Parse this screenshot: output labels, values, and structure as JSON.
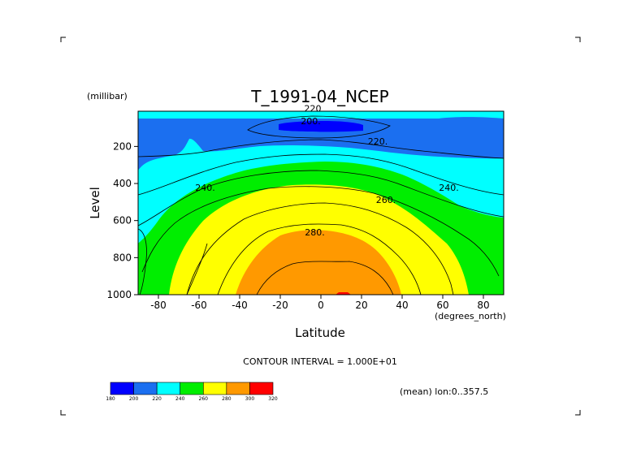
{
  "chart_data": {
    "type": "heatmap",
    "title": "T_1991-04_NCEP",
    "xlabel": "Latitude",
    "x_unit": "(degrees_north)",
    "ylabel": "Level",
    "y_unit": "(millibar)",
    "xlim": [
      -90,
      90
    ],
    "ylim": [
      1000,
      10
    ],
    "y_axis_reversed": true,
    "x_ticks": [
      -80,
      -60,
      -40,
      -20,
      0,
      20,
      40,
      60,
      80
    ],
    "y_ticks": [
      200,
      400,
      600,
      800,
      1000
    ],
    "contour_interval_text": "CONTOUR INTERVAL = 1.000E+01",
    "contour_labels": [
      {
        "text": "220",
        "x": -4,
        "y": 12
      },
      {
        "text": "200.",
        "x": -5,
        "y": 80
      },
      {
        "text": "220.",
        "x": 28,
        "y": 190
      },
      {
        "text": "240.",
        "x": -57,
        "y": 440
      },
      {
        "text": "260.",
        "x": 32,
        "y": 505
      },
      {
        "text": "240.",
        "x": 63,
        "y": 440
      },
      {
        "text": "280.",
        "x": -3,
        "y": 680
      }
    ],
    "colorbar": {
      "levels": [
        180,
        200,
        220,
        240,
        260,
        280,
        300,
        320
      ],
      "colors": [
        "#0000ff",
        "#1b6ff0",
        "#00ffff",
        "#00ee00",
        "#ffff00",
        "#ff9900",
        "#ff0000"
      ]
    },
    "footnote": "(mean) lon:0..357.5",
    "grid": false
  }
}
